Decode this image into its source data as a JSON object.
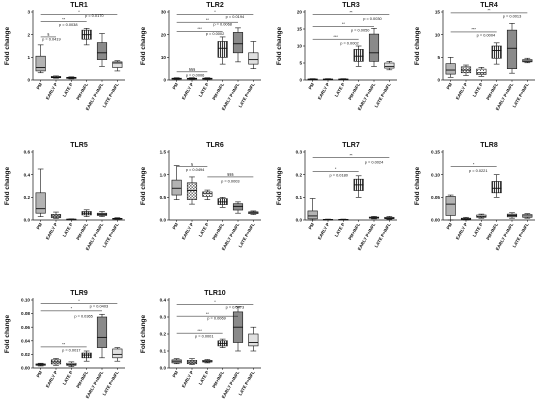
{
  "categories": [
    "PM",
    "EARLY P",
    "LATE P",
    "PM+INFL",
    "EARLY P+INFL",
    "LATE P+INFL"
  ],
  "colors": {
    "box_fill": [
      "#b3b3b3",
      "#e6e6e6",
      "#cfcfcf",
      "#3f3f3f",
      "#8a8a8a",
      "#e0e0e0"
    ],
    "stroke": "#111111"
  },
  "chart_data": [
    {
      "type": "box",
      "title": "TLR1",
      "ylabel": "Fold change",
      "yticks": [
        "0",
        "1",
        "2",
        "3"
      ],
      "ylim": [
        0,
        3
      ],
      "boxes": [
        {
          "min": 0.32,
          "q1": 0.4,
          "median": 0.55,
          "q3": 1.05,
          "max": 1.55
        },
        {
          "min": 0.08,
          "q1": 0.1,
          "median": 0.12,
          "q3": 0.16,
          "max": 0.18
        },
        {
          "min": 0.05,
          "q1": 0.07,
          "median": 0.09,
          "q3": 0.12,
          "max": 0.14
        },
        {
          "min": 1.55,
          "q1": 1.8,
          "median": 2.0,
          "q3": 2.2,
          "max": 2.28
        },
        {
          "min": 0.6,
          "q1": 0.9,
          "median": 1.2,
          "q3": 1.65,
          "max": 2.05
        },
        {
          "min": 0.4,
          "q1": 0.55,
          "median": 0.75,
          "q3": 0.8,
          "max": 0.85
        }
      ],
      "comparisons": [
        {
          "from": 0,
          "to": 5,
          "level": 2.9,
          "label": "*"
        },
        {
          "from": 0,
          "to": 3,
          "level": 2.58,
          "label": "**"
        },
        {
          "from": 0,
          "to": 1,
          "level": 1.9,
          "label": "§"
        }
      ],
      "annotations": [
        {
          "text": "p = 0.0170",
          "cat": 3.5,
          "level": 2.78
        },
        {
          "text": "p = 0.0038",
          "cat": 1.8,
          "level": 2.38
        },
        {
          "text": "p = 0.0419",
          "cat": 0.7,
          "level": 1.75
        }
      ]
    },
    {
      "type": "box",
      "title": "TLR2",
      "ylabel": "Fold change",
      "yticks": [
        "0",
        "10",
        "20",
        "30"
      ],
      "ylim": [
        0,
        30
      ],
      "boxes": [
        {
          "min": 0.2,
          "q1": 0.4,
          "median": 0.6,
          "q3": 0.8,
          "max": 1.0
        },
        {
          "min": 0.2,
          "q1": 0.4,
          "median": 0.6,
          "q3": 0.8,
          "max": 1.0
        },
        {
          "min": 0.2,
          "q1": 0.4,
          "median": 0.6,
          "q3": 0.8,
          "max": 1.0
        },
        {
          "min": 7,
          "q1": 10,
          "median": 14,
          "q3": 17,
          "max": 19
        },
        {
          "min": 8,
          "q1": 12,
          "median": 16,
          "q3": 21,
          "max": 23
        },
        {
          "min": 5,
          "q1": 7,
          "median": 9,
          "q3": 12,
          "max": 17
        }
      ],
      "comparisons": [
        {
          "from": 0,
          "to": 5,
          "level": 29,
          "label": "*"
        },
        {
          "from": 0,
          "to": 4,
          "level": 25.5,
          "label": "**"
        },
        {
          "from": 0,
          "to": 3,
          "level": 21.5,
          "label": "***"
        },
        {
          "from": 0,
          "to": 2,
          "level": 3.6,
          "label": "§§§"
        }
      ],
      "annotations": [
        {
          "text": "p = 0.0194",
          "cat": 3.8,
          "level": 27.3
        },
        {
          "text": "p = 0.0068",
          "cat": 3.0,
          "level": 24
        },
        {
          "text": "p = 0.0002",
          "cat": 2.5,
          "level": 19.8
        },
        {
          "text": "p = 0.0006",
          "cat": 1.2,
          "level": 1.6
        }
      ]
    },
    {
      "type": "box",
      "title": "TLR3",
      "ylabel": "Fold change",
      "yticks": [
        "0",
        "5",
        "10",
        "15",
        "20"
      ],
      "ylim": [
        0,
        20
      ],
      "boxes": [
        {
          "min": 0.1,
          "q1": 0.15,
          "median": 0.2,
          "q3": 0.3,
          "max": 0.4
        },
        {
          "min": 0.1,
          "q1": 0.15,
          "median": 0.2,
          "q3": 0.3,
          "max": 0.4
        },
        {
          "min": 0.1,
          "q1": 0.15,
          "median": 0.2,
          "q3": 0.3,
          "max": 0.4
        },
        {
          "min": 4,
          "q1": 5.5,
          "median": 7,
          "q3": 9,
          "max": 10
        },
        {
          "min": 4,
          "q1": 5.5,
          "median": 8,
          "q3": 13.5,
          "max": 15.2
        },
        {
          "min": 3,
          "q1": 3.5,
          "median": 4,
          "q3": 5,
          "max": 5.5
        }
      ],
      "comparisons": [
        {
          "from": 0,
          "to": 5,
          "level": 19.2,
          "label": "**"
        },
        {
          "from": 0,
          "to": 4,
          "level": 15.8,
          "label": "**"
        },
        {
          "from": 0,
          "to": 3,
          "level": 12,
          "label": "***"
        }
      ],
      "annotations": [
        {
          "text": "p = 0.0030",
          "cat": 3.9,
          "level": 17.6
        },
        {
          "text": "p = 0.0050",
          "cat": 3.1,
          "level": 14.2
        },
        {
          "text": "p = 0.0002",
          "cat": 2.4,
          "level": 10.5
        }
      ]
    },
    {
      "type": "box",
      "title": "TLR4",
      "ylabel": "Fold change",
      "yticks": [
        "0",
        "5",
        "10",
        "15"
      ],
      "ylim": [
        0,
        15
      ],
      "boxes": [
        {
          "min": 0.6,
          "q1": 1.3,
          "median": 2.2,
          "q3": 3.6,
          "max": 5.0
        },
        {
          "min": 1.0,
          "q1": 1.6,
          "median": 2.2,
          "q3": 2.9,
          "max": 3.3
        },
        {
          "min": 0.8,
          "q1": 1.2,
          "median": 1.6,
          "q3": 2.4,
          "max": 2.8
        },
        {
          "min": 3.5,
          "q1": 4.8,
          "median": 6.5,
          "q3": 7.5,
          "max": 8.2
        },
        {
          "min": 1.5,
          "q1": 2.5,
          "median": 7,
          "q3": 11,
          "max": 12.5
        },
        {
          "min": 3.8,
          "q1": 4.0,
          "median": 4.2,
          "q3": 4.5,
          "max": 4.8
        }
      ],
      "comparisons": [
        {
          "from": 0,
          "to": 5,
          "level": 14.8,
          "label": "**"
        },
        {
          "from": 0,
          "to": 3,
          "level": 10.6,
          "label": "***"
        }
      ],
      "annotations": [
        {
          "text": "p = 0.0013",
          "cat": 4.0,
          "level": 13.8
        },
        {
          "text": "p = 0.0004",
          "cat": 2.3,
          "level": 9.6
        }
      ]
    },
    {
      "type": "box",
      "title": "TLR5",
      "ylabel": "Fold change",
      "yticks": [
        "0.0",
        "0.2",
        "0.4",
        "0.6"
      ],
      "ylim": [
        0,
        0.6
      ],
      "boxes": [
        {
          "min": 0.03,
          "q1": 0.06,
          "median": 0.1,
          "q3": 0.24,
          "max": 0.45
        },
        {
          "min": 0.015,
          "q1": 0.02,
          "median": 0.035,
          "q3": 0.05,
          "max": 0.07
        },
        {
          "min": 0.002,
          "q1": 0.004,
          "median": 0.006,
          "q3": 0.008,
          "max": 0.01
        },
        {
          "min": 0.03,
          "q1": 0.045,
          "median": 0.06,
          "q3": 0.075,
          "max": 0.09
        },
        {
          "min": 0.03,
          "q1": 0.04,
          "median": 0.05,
          "q3": 0.06,
          "max": 0.075
        },
        {
          "min": 0.005,
          "q1": 0.008,
          "median": 0.012,
          "q3": 0.015,
          "max": 0.02
        }
      ],
      "comparisons": [],
      "annotations": []
    },
    {
      "type": "box",
      "title": "TLR6",
      "ylabel": "Fold change",
      "yticks": [
        "0.0",
        "0.5",
        "1.0",
        "1.5"
      ],
      "ylim": [
        0,
        1.5
      ],
      "boxes": [
        {
          "min": 0.45,
          "q1": 0.55,
          "median": 0.7,
          "q3": 0.88,
          "max": 1.2
        },
        {
          "min": 0.35,
          "q1": 0.45,
          "median": 0.65,
          "q3": 0.82,
          "max": 0.95
        },
        {
          "min": 0.45,
          "q1": 0.52,
          "median": 0.58,
          "q3": 0.62,
          "max": 0.66
        },
        {
          "min": 0.28,
          "q1": 0.34,
          "median": 0.4,
          "q3": 0.47,
          "max": 0.5
        },
        {
          "min": 0.15,
          "q1": 0.22,
          "median": 0.3,
          "q3": 0.36,
          "max": 0.4
        },
        {
          "min": 0.12,
          "q1": 0.14,
          "median": 0.16,
          "q3": 0.18,
          "max": 0.2
        }
      ],
      "comparisons": [
        {
          "from": 0,
          "to": 2,
          "level": 1.18,
          "label": "§"
        },
        {
          "from": 2,
          "to": 5,
          "level": 0.95,
          "label": "§§§"
        }
      ],
      "annotations": [
        {
          "text": "p = 0.0494",
          "cat": 1.2,
          "level": 1.08
        },
        {
          "text": "p = 0.0003",
          "cat": 3.5,
          "level": 0.83
        }
      ]
    },
    {
      "type": "box",
      "title": "TLR7",
      "ylabel": "Fold change",
      "yticks": [
        "0.0",
        "0.1",
        "0.2",
        "0.3"
      ],
      "ylim": [
        0,
        0.3
      ],
      "boxes": [
        {
          "min": 0.0,
          "q1": 0.005,
          "median": 0.018,
          "q3": 0.04,
          "max": 0.095
        },
        {
          "min": 0.0,
          "q1": 0.001,
          "median": 0.002,
          "q3": 0.003,
          "max": 0.004
        },
        {
          "min": 0.0,
          "q1": 0.001,
          "median": 0.002,
          "q3": 0.003,
          "max": 0.004
        },
        {
          "min": 0.1,
          "q1": 0.13,
          "median": 0.155,
          "q3": 0.18,
          "max": 0.195
        },
        {
          "min": 0.005,
          "q1": 0.008,
          "median": 0.01,
          "q3": 0.013,
          "max": 0.016
        },
        {
          "min": 0.003,
          "q1": 0.006,
          "median": 0.008,
          "q3": 0.012,
          "max": 0.016
        }
      ],
      "comparisons": [
        {
          "from": 0,
          "to": 5,
          "level": 0.275,
          "label": "**"
        },
        {
          "from": 0,
          "to": 3,
          "level": 0.215,
          "label": "*"
        }
      ],
      "annotations": [
        {
          "text": "p = 0.0024",
          "cat": 4.0,
          "level": 0.25
        },
        {
          "text": "p = 0.0180",
          "cat": 1.7,
          "level": 0.192
        }
      ]
    },
    {
      "type": "box",
      "title": "TLR8",
      "ylabel": "Fold change",
      "yticks": [
        "0.00",
        "0.05",
        "0.10",
        "0.15"
      ],
      "ylim": [
        0,
        0.15
      ],
      "boxes": [
        {
          "min": 0.0,
          "q1": 0.01,
          "median": 0.035,
          "q3": 0.052,
          "max": 0.055
        },
        {
          "min": 0.0,
          "q1": 0.001,
          "median": 0.002,
          "q3": 0.004,
          "max": 0.006
        },
        {
          "min": 0.004,
          "q1": 0.006,
          "median": 0.008,
          "q3": 0.011,
          "max": 0.013
        },
        {
          "min": 0.05,
          "q1": 0.06,
          "median": 0.07,
          "q3": 0.085,
          "max": 0.1
        },
        {
          "min": 0.004,
          "q1": 0.007,
          "median": 0.01,
          "q3": 0.013,
          "max": 0.016
        },
        {
          "min": 0.004,
          "q1": 0.006,
          "median": 0.009,
          "q3": 0.012,
          "max": 0.014
        }
      ],
      "comparisons": [
        {
          "from": 0,
          "to": 3,
          "level": 0.118,
          "label": "*"
        }
      ],
      "annotations": [
        {
          "text": "p = 0.0221",
          "cat": 1.8,
          "level": 0.106
        }
      ]
    },
    {
      "type": "box",
      "title": "TLR9",
      "ylabel": "Fold change",
      "yticks": [
        "0.00",
        "0.02",
        "0.04",
        "0.06",
        "0.08",
        "0.10"
      ],
      "ylim": [
        0,
        0.1
      ],
      "boxes": [
        {
          "min": 0.003,
          "q1": 0.004,
          "median": 0.005,
          "q3": 0.006,
          "max": 0.007
        },
        {
          "min": 0.004,
          "q1": 0.006,
          "median": 0.009,
          "q3": 0.012,
          "max": 0.014
        },
        {
          "min": 0.002,
          "q1": 0.004,
          "median": 0.005,
          "q3": 0.007,
          "max": 0.009
        },
        {
          "min": 0.01,
          "q1": 0.015,
          "median": 0.019,
          "q3": 0.022,
          "max": 0.025
        },
        {
          "min": 0.015,
          "q1": 0.03,
          "median": 0.045,
          "q3": 0.075,
          "max": 0.079
        },
        {
          "min": 0.01,
          "q1": 0.015,
          "median": 0.02,
          "q3": 0.028,
          "max": 0.03
        }
      ],
      "comparisons": [
        {
          "from": 0,
          "to": 5,
          "level": 0.095,
          "label": "*"
        },
        {
          "from": 0,
          "to": 4,
          "level": 0.084,
          "label": "*"
        },
        {
          "from": 0,
          "to": 3,
          "level": 0.031,
          "label": "**"
        }
      ],
      "annotations": [
        {
          "text": "p = 0.0403",
          "cat": 3.8,
          "level": 0.089
        },
        {
          "text": "p = 0.0365",
          "cat": 2.8,
          "level": 0.074
        },
        {
          "text": "p = 0.0017",
          "cat": 2.0,
          "level": 0.024
        }
      ]
    },
    {
      "type": "box",
      "title": "TLR10",
      "ylabel": "Fold change",
      "yticks": [
        "0.0",
        "0.1",
        "0.2",
        "0.3",
        "0.4"
      ],
      "ylim": [
        0,
        0.4
      ],
      "boxes": [
        {
          "min": 0.025,
          "q1": 0.03,
          "median": 0.04,
          "q3": 0.048,
          "max": 0.055
        },
        {
          "min": 0.02,
          "q1": 0.025,
          "median": 0.035,
          "q3": 0.045,
          "max": 0.055
        },
        {
          "min": 0.03,
          "q1": 0.035,
          "median": 0.04,
          "q3": 0.045,
          "max": 0.05
        },
        {
          "min": 0.12,
          "q1": 0.13,
          "median": 0.145,
          "q3": 0.16,
          "max": 0.17
        },
        {
          "min": 0.1,
          "q1": 0.15,
          "median": 0.24,
          "q3": 0.33,
          "max": 0.36
        },
        {
          "min": 0.1,
          "q1": 0.13,
          "median": 0.15,
          "q3": 0.2,
          "max": 0.24
        }
      ],
      "comparisons": [
        {
          "from": 0,
          "to": 5,
          "level": 0.375,
          "label": "*"
        },
        {
          "from": 0,
          "to": 4,
          "level": 0.305,
          "label": "**"
        },
        {
          "from": 0,
          "to": 3,
          "level": 0.205,
          "label": "***"
        }
      ],
      "annotations": [
        {
          "text": "p = 0.0473",
          "cat": 3.8,
          "level": 0.35
        },
        {
          "text": "p = 0.0069",
          "cat": 2.6,
          "level": 0.284
        },
        {
          "text": "p = 0.0001",
          "cat": 1.8,
          "level": 0.18
        }
      ]
    }
  ]
}
